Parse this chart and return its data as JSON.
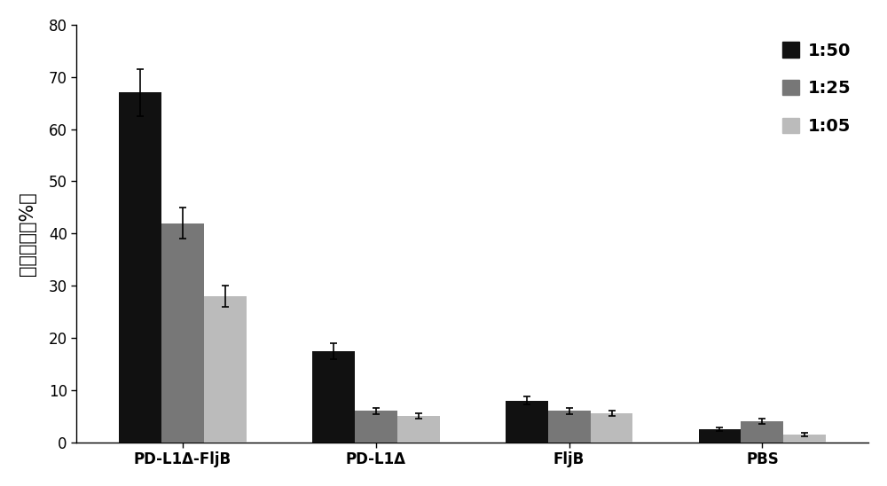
{
  "categories": [
    "PD-L1Δ-FljB",
    "PD-L1Δ",
    "FljB",
    "PBS"
  ],
  "series": {
    "1:50": [
      67.0,
      17.5,
      8.0,
      2.5
    ],
    "1:25": [
      42.0,
      6.0,
      6.0,
      4.0
    ],
    "1:05": [
      28.0,
      5.0,
      5.5,
      1.5
    ]
  },
  "errors": {
    "1:50": [
      4.5,
      1.5,
      0.8,
      0.4
    ],
    "1:25": [
      3.0,
      0.6,
      0.6,
      0.5
    ],
    "1:05": [
      2.0,
      0.5,
      0.5,
      0.3
    ]
  },
  "colors": {
    "1:50": "#111111",
    "1:25": "#777777",
    "1:05": "#bbbbbb"
  },
  "ylabel": "细胞杀伤（%）",
  "ylim": [
    0,
    80
  ],
  "yticks": [
    0,
    10,
    20,
    30,
    40,
    50,
    60,
    70,
    80
  ],
  "legend_labels": [
    "1:50",
    "1:25",
    "1:05"
  ],
  "bar_width": 0.22,
  "background_color": "#ffffff",
  "ylabel_fontsize": 15,
  "tick_fontsize": 12,
  "legend_fontsize": 14
}
